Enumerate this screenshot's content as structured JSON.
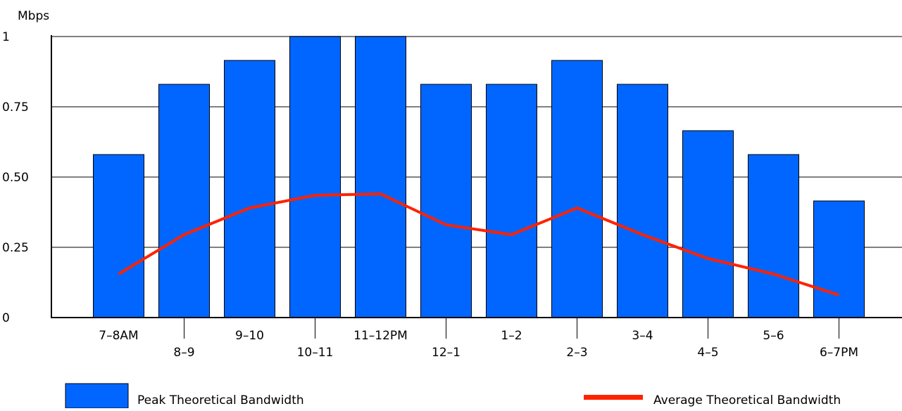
{
  "colors": {
    "bar": "#0066ff",
    "bar_stroke": "#000000",
    "line": "#ff2200",
    "grid": "#808080",
    "axis": "#000000"
  },
  "chart_data": {
    "type": "bar",
    "title": "",
    "xlabel": "",
    "ylabel": "Mbps",
    "ylim": [
      0,
      1
    ],
    "yticks": [
      0,
      0.25,
      0.5,
      0.75,
      1
    ],
    "ytick_labels": [
      "0",
      "0.25",
      "0.50",
      "0.75",
      "1"
    ],
    "grid": true,
    "legend_position": "bottom",
    "categories": [
      "7–8AM",
      "8–9",
      "9–10",
      "10–11",
      "11–12PM",
      "12–1",
      "1–2",
      "2–3",
      "3–4",
      "4–5",
      "5–6",
      "6–7PM"
    ],
    "series": [
      {
        "name": "Peak Theoretical Bandwidth",
        "kind": "bar",
        "values": [
          0.58,
          0.83,
          0.915,
          1.0,
          1.0,
          0.83,
          0.83,
          0.915,
          0.83,
          0.665,
          0.58,
          0.415
        ]
      },
      {
        "name": "Average Theoretical Bandwidth",
        "kind": "line",
        "values": [
          0.155,
          0.295,
          0.39,
          0.435,
          0.44,
          0.33,
          0.295,
          0.39,
          0.295,
          0.21,
          0.155,
          0.08
        ]
      }
    ]
  }
}
